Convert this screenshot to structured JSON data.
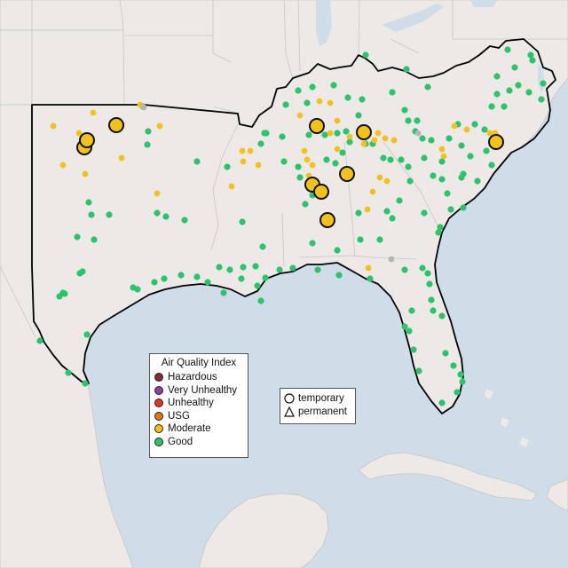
{
  "colors": {
    "water": "#cfdde8",
    "land": "#ece9e7",
    "land_border": "#c9c5c3",
    "region_outline": "#000000",
    "Hazardous": "#7e2d2d",
    "Very Unhealthy": "#8f3f97",
    "Unhealthy": "#e5332a",
    "USG": "#e2751b",
    "Moderate": "#f2c21b",
    "Good": "#2bc46c",
    "Unknown": "#b5b5b5"
  },
  "legend_aqi": {
    "title": "Air Quality Index",
    "items": [
      {
        "label": "Hazardous",
        "color": "#7e2d2d"
      },
      {
        "label": "Very Unhealthy",
        "color": "#8f3f97"
      },
      {
        "label": "Unhealthy",
        "color": "#e5332a"
      },
      {
        "label": "USG",
        "color": "#e2751b"
      },
      {
        "label": "Moderate",
        "color": "#f2c21b"
      },
      {
        "label": "Good",
        "color": "#2bc46c"
      }
    ]
  },
  "legend_type": {
    "items": [
      {
        "label": "temporary",
        "shape": "circle"
      },
      {
        "label": "permanent",
        "shape": "triangle"
      }
    ]
  }
}
